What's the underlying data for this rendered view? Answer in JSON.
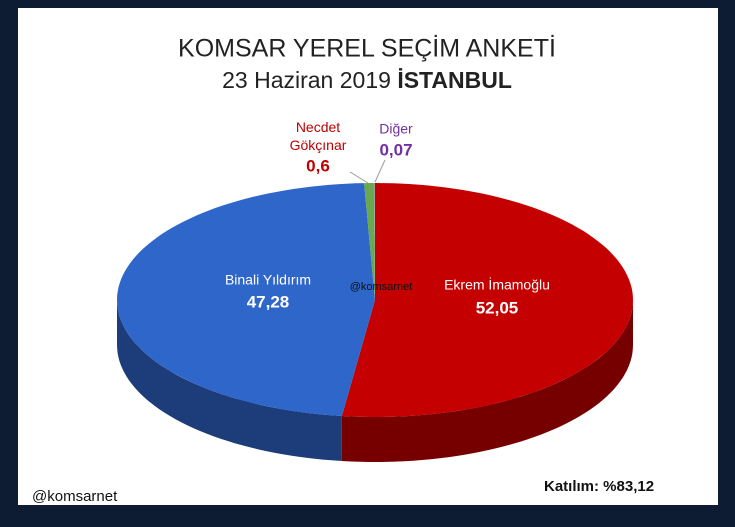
{
  "chart_data": {
    "type": "pie3d",
    "title": "KOMSAR YEREL SEÇİM ANKETİ",
    "subtitle": "23 Haziran 2019",
    "subtitle_emphasis": "İSTANBUL",
    "categories": [
      "Ekrem İmamoğlu",
      "Binali Yıldırım",
      "Necdet Gökçınar",
      "Diğer"
    ],
    "values": [
      52.05,
      47.28,
      0.6,
      0.07
    ],
    "value_labels": [
      "52,05",
      "47,28",
      "0,6",
      "0,07"
    ],
    "colors": [
      "#c40000",
      "#2e66c9",
      "#6aa84f",
      "#9a9a9a"
    ],
    "annotations": [
      "@komsarnet",
      "@komsarnet",
      "Katılım: %83,12"
    ]
  }
}
